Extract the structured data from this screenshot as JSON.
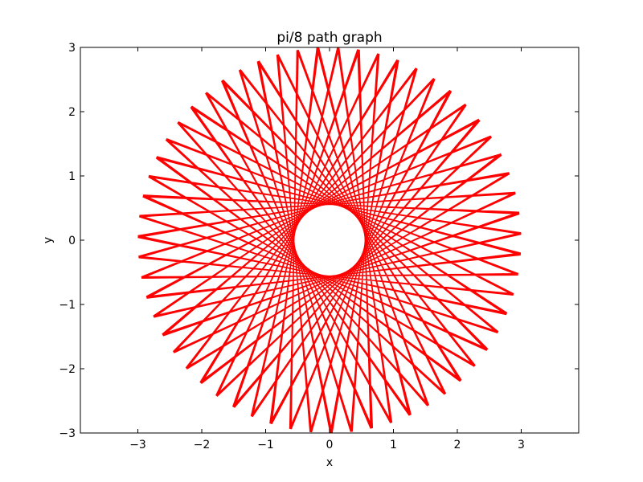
{
  "chart_data": {
    "type": "line",
    "title": "pi/8 path graph",
    "xlabel": "x",
    "ylabel": "y",
    "xlim": [
      -3.9,
      3.9
    ],
    "ylim": [
      -3,
      3
    ],
    "xticks": [
      -3,
      -2,
      -1,
      0,
      1,
      2,
      3
    ],
    "yticks": [
      -3,
      -2,
      -1,
      0,
      1,
      2,
      3
    ],
    "xtick_labels": [
      "−3",
      "−2",
      "−1",
      "0",
      "1",
      "2",
      "3"
    ],
    "ytick_labels": [
      "−3",
      "−2",
      "−1",
      "0",
      "1",
      "2",
      "3"
    ],
    "grid": false,
    "legend": false,
    "series": [
      {
        "color": "#ff0000",
        "path": {
          "rule": "vertices on circle of radius r, each step turns by angle_step",
          "radius": 3,
          "angle_step": "pi - pi/8 + small drift",
          "drift_per_step": 0.02,
          "steps": 320,
          "start_angle_deg": 20
        }
      }
    ]
  }
}
